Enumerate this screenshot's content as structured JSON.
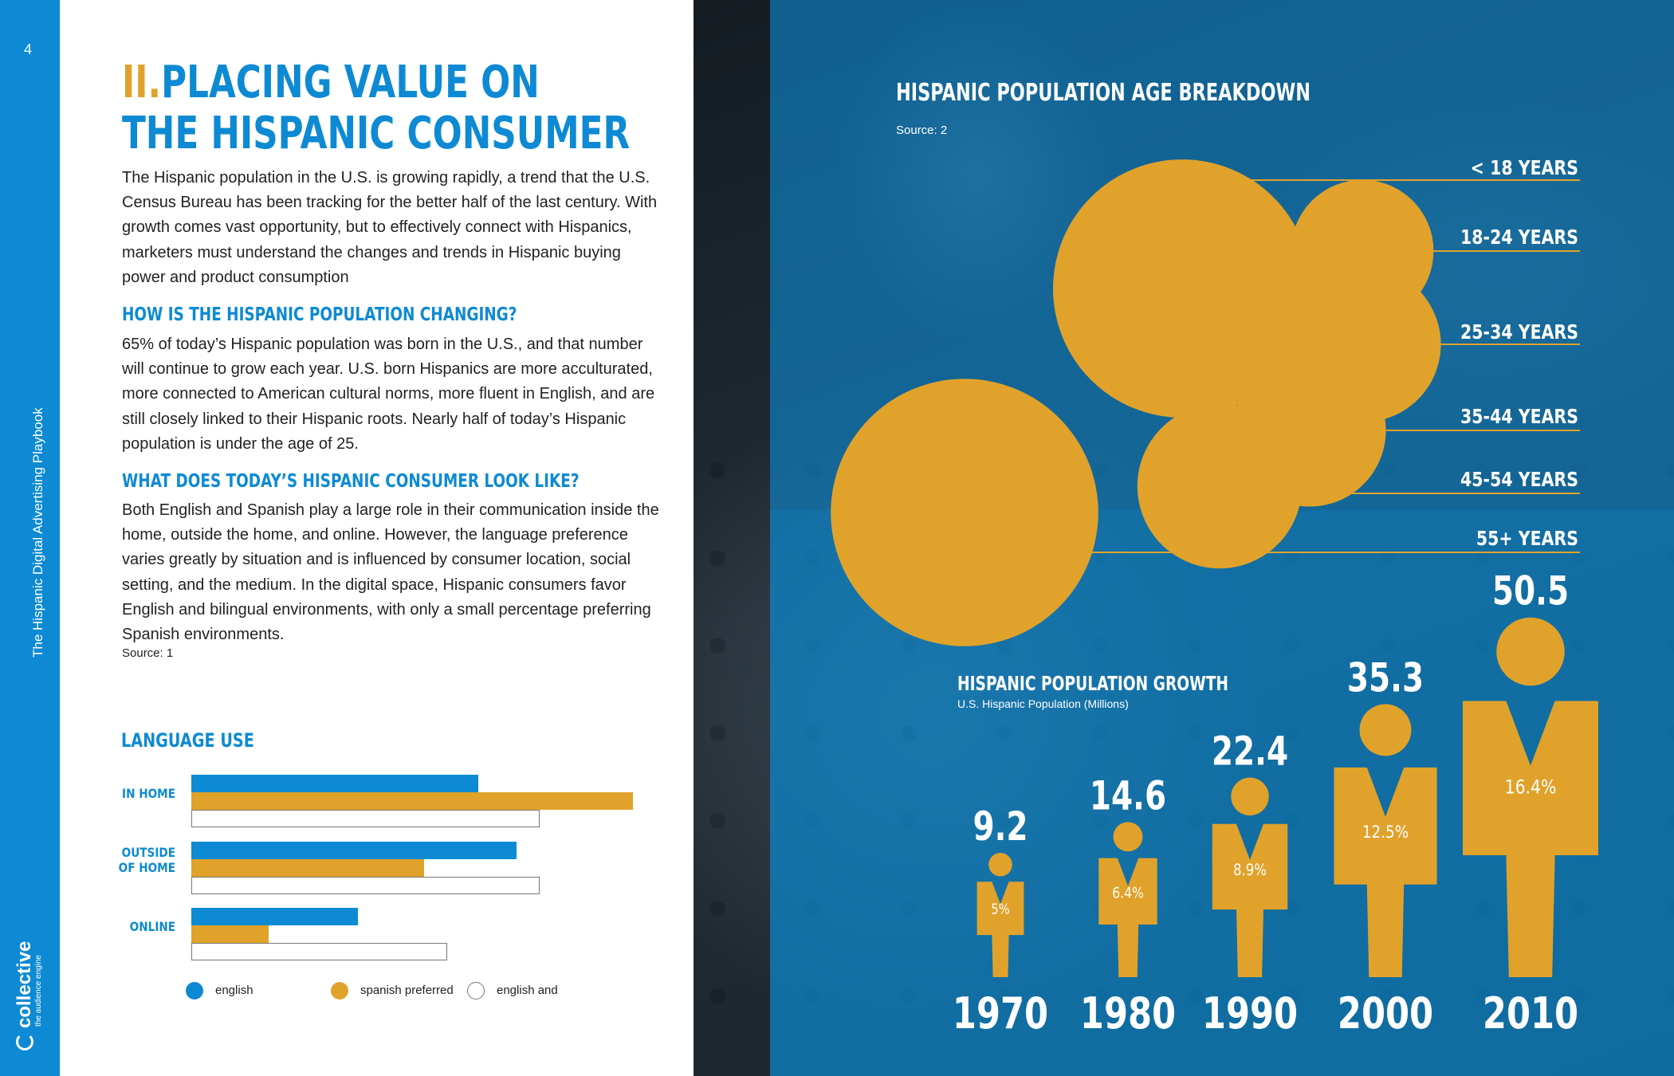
{
  "page": {
    "number": "4",
    "spine_title": "The Hispanic Digital Advertising Playbook",
    "logo": {
      "word": "collective",
      "tagline": "the audience engine"
    }
  },
  "article": {
    "title_num": "II.",
    "title_line1": "PLACING VALUE ON",
    "title_line2": "THE HISPANIC CONSUMER",
    "intro": "The Hispanic population in the U.S. is growing rapidly, a trend that the U.S. Census Bureau has been tracking for the better half of the last century. With growth comes vast opportunity, but to effectively connect with Hispanics, marketers must understand the changes and trends in Hispanic buying power and product consumption",
    "subhead1": "HOW IS THE HISPANIC POPULATION CHANGING?",
    "para1": "65% of today’s Hispanic population was born in the U.S., and that number will continue to grow each year. U.S. born Hispanics are more acculturated, more connected to American cultural norms, more fluent in English, and are still closely linked to their Hispanic roots. Nearly half of today’s Hispanic population is under the age of 25.",
    "subhead2": "WHAT DOES TODAY’S HISPANIC CONSUMER LOOK LIKE?",
    "para2": "Both English and Spanish play a large role in their communication inside the home, outside the home, and online. However, the language preference varies greatly by situation and is influenced by consumer location, social setting, and the medium. In the digital space, Hispanic consumers favor English and bilingual environments, with only a small percentage preferring Spanish environments.",
    "source": "Source: 1"
  },
  "colors": {
    "blue": "#0d8ad3",
    "gold": "#e0a22b",
    "white": "#ffffff"
  },
  "chart_data": [
    {
      "type": "bar",
      "orientation": "horizontal",
      "title": "LANGUAGE USE",
      "categories": [
        "IN HOME",
        "OUTSIDE OF HOME",
        "ONLINE"
      ],
      "category_lines": [
        [
          "IN HOME"
        ],
        [
          "OUTSIDE",
          "OF HOME"
        ],
        [
          "ONLINE"
        ]
      ],
      "series": [
        {
          "name": "english",
          "color": "#0d8ad3",
          "values": [
            37,
            42,
            21.5
          ]
        },
        {
          "name": "spanish preferred",
          "color": "#e0a22b",
          "values": [
            57,
            30,
            10
          ]
        },
        {
          "name": "english and",
          "color": "#ffffff",
          "values": [
            45,
            45,
            33
          ]
        }
      ],
      "xlim": [
        0,
        60
      ],
      "grid": false,
      "legend": "bottom"
    },
    {
      "type": "bubble",
      "title": "HISPANIC POPULATION AGE BREAKDOWN",
      "source": "Source: 2",
      "categories": [
        "< 18 YEARS",
        "18-24 YEARS",
        "25-34 YEARS",
        "35-44 YEARS",
        "45-54 YEARS",
        "55+ YEARS"
      ],
      "relative_size": [
        34.5,
        10.5,
        12.5,
        12,
        14,
        37
      ]
    },
    {
      "type": "pictogram",
      "title": "HISPANIC POPULATION GROWTH",
      "subtitle": "U.S. Hispanic Population (Millions)",
      "categories": [
        "1970",
        "1980",
        "1990",
        "2000",
        "2010"
      ],
      "values": [
        9.2,
        14.6,
        22.4,
        35.3,
        50.5
      ],
      "value_labels": [
        "9.2",
        "14.6",
        "22.4",
        "35.3",
        "50.5"
      ],
      "share_labels": [
        "5%",
        "6.4%",
        "8.9%",
        "12.5%",
        "16.4%"
      ]
    }
  ]
}
